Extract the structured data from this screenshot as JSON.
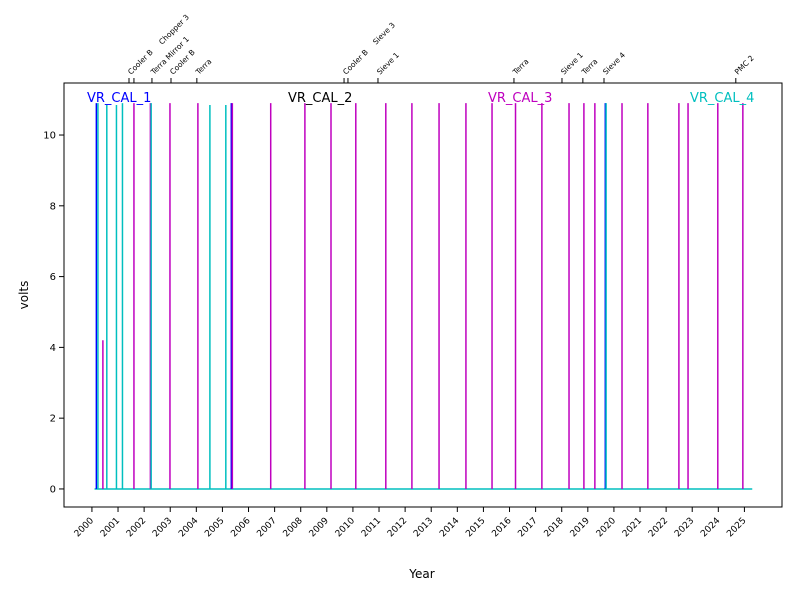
{
  "chart_data": {
    "type": "line",
    "title": "",
    "xlabel": "Year",
    "ylabel": "volts",
    "xlim": [
      1998.93,
      2026.44
    ],
    "ylim": [
      -0.51,
      11.47
    ],
    "grid": false,
    "x_ticks": [
      "2000",
      "2001",
      "2002",
      "2003",
      "2004",
      "2005",
      "2006",
      "2007",
      "2008",
      "2009",
      "2010",
      "2011",
      "2012",
      "2013",
      "2014",
      "2015",
      "2016",
      "2017",
      "2018",
      "2019",
      "2020",
      "2021",
      "2022",
      "2023",
      "2024",
      "2025"
    ],
    "y_ticks": [
      "0",
      "2",
      "4",
      "6",
      "8",
      "10"
    ],
    "series": [
      {
        "name": "VR_CAL_1",
        "color": "#0000ff"
      },
      {
        "name": "VR_CAL_2",
        "color": "#000000"
      },
      {
        "name": "VR_CAL_3",
        "color": "#bf00bf"
      },
      {
        "name": "VR_CAL_4",
        "color": "#00bfbf"
      }
    ],
    "baseline": {
      "series": "VR_CAL_4",
      "x": [
        2000.1,
        2025.3
      ],
      "y": 0
    },
    "spikes": [
      {
        "x": 2000.17,
        "y": 10.9,
        "series": "VR_CAL_1"
      },
      {
        "x": 2000.23,
        "y": 10.9,
        "series": "VR_CAL_4"
      },
      {
        "x": 2000.42,
        "y": 4.2,
        "series": "VR_CAL_3"
      },
      {
        "x": 2000.57,
        "y": 10.85,
        "series": "VR_CAL_4"
      },
      {
        "x": 2000.94,
        "y": 10.85,
        "series": "VR_CAL_4"
      },
      {
        "x": 2001.17,
        "y": 10.9,
        "series": "VR_CAL_4"
      },
      {
        "x": 2001.61,
        "y": 10.9,
        "series": "VR_CAL_3"
      },
      {
        "x": 2002.24,
        "y": 10.9,
        "series": "VR_CAL_3"
      },
      {
        "x": 2002.27,
        "y": 10.9,
        "series": "VR_CAL_4"
      },
      {
        "x": 2002.99,
        "y": 10.9,
        "series": "VR_CAL_3"
      },
      {
        "x": 2004.06,
        "y": 10.9,
        "series": "VR_CAL_3"
      },
      {
        "x": 2004.52,
        "y": 10.85,
        "series": "VR_CAL_4"
      },
      {
        "x": 2005.13,
        "y": 10.85,
        "series": "VR_CAL_4"
      },
      {
        "x": 2005.34,
        "y": 10.9,
        "series": "VR_CAL_1"
      },
      {
        "x": 2005.38,
        "y": 10.9,
        "series": "VR_CAL_3"
      },
      {
        "x": 2006.85,
        "y": 10.9,
        "series": "VR_CAL_3"
      },
      {
        "x": 2008.16,
        "y": 10.9,
        "series": "VR_CAL_3"
      },
      {
        "x": 2009.16,
        "y": 10.9,
        "series": "VR_CAL_3"
      },
      {
        "x": 2010.11,
        "y": 10.9,
        "series": "VR_CAL_3"
      },
      {
        "x": 2011.26,
        "y": 10.9,
        "series": "VR_CAL_3"
      },
      {
        "x": 2012.26,
        "y": 10.9,
        "series": "VR_CAL_3"
      },
      {
        "x": 2013.3,
        "y": 10.9,
        "series": "VR_CAL_3"
      },
      {
        "x": 2014.33,
        "y": 10.9,
        "series": "VR_CAL_3"
      },
      {
        "x": 2015.33,
        "y": 10.9,
        "series": "VR_CAL_3"
      },
      {
        "x": 2016.23,
        "y": 10.9,
        "series": "VR_CAL_3"
      },
      {
        "x": 2017.24,
        "y": 10.9,
        "series": "VR_CAL_3"
      },
      {
        "x": 2018.28,
        "y": 10.9,
        "series": "VR_CAL_3"
      },
      {
        "x": 2018.85,
        "y": 10.9,
        "series": "VR_CAL_3"
      },
      {
        "x": 2019.27,
        "y": 10.9,
        "series": "VR_CAL_3"
      },
      {
        "x": 2019.67,
        "y": 10.9,
        "series": "VR_CAL_1"
      },
      {
        "x": 2019.7,
        "y": 10.9,
        "series": "VR_CAL_4"
      },
      {
        "x": 2020.31,
        "y": 10.9,
        "series": "VR_CAL_3"
      },
      {
        "x": 2021.3,
        "y": 10.9,
        "series": "VR_CAL_3"
      },
      {
        "x": 2022.49,
        "y": 10.9,
        "series": "VR_CAL_3"
      },
      {
        "x": 2022.84,
        "y": 10.9,
        "series": "VR_CAL_3"
      },
      {
        "x": 2023.98,
        "y": 10.9,
        "series": "VR_CAL_3"
      },
      {
        "x": 2024.94,
        "y": 10.9,
        "series": "VR_CAL_3"
      }
    ],
    "events": [
      {
        "x": 2001.42,
        "label": "Cooler B"
      },
      {
        "x": 2001.61,
        "label": "Chopper 3"
      },
      {
        "x": 2002.3,
        "label": "Terra Mirror 1"
      },
      {
        "x": 2003.03,
        "label": "Cooler B"
      },
      {
        "x": 2004.02,
        "label": "Terra"
      },
      {
        "x": 2009.66,
        "label": "Cooler B"
      },
      {
        "x": 2009.81,
        "label": "Sieve 3"
      },
      {
        "x": 2010.96,
        "label": "Sieve 1"
      },
      {
        "x": 2016.17,
        "label": "Terra"
      },
      {
        "x": 2018.01,
        "label": "Sieve 1"
      },
      {
        "x": 2018.81,
        "label": "Terra"
      },
      {
        "x": 2019.62,
        "label": "Sieve 4"
      },
      {
        "x": 2024.67,
        "label": "PMC 2"
      }
    ]
  }
}
